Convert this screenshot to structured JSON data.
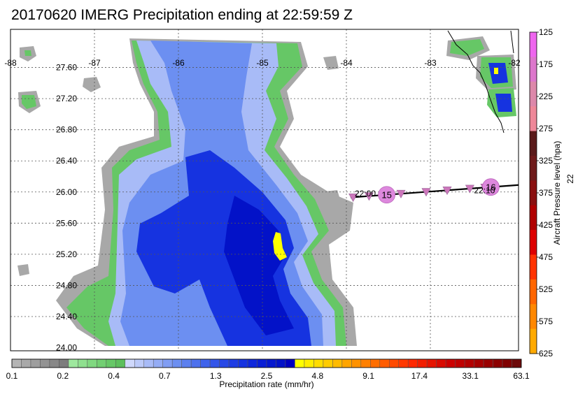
{
  "chart_data": {
    "type": "heatmap",
    "title": "20170620 IMERG Precipitation ending at 22:59:59 Z",
    "x_ticks": [
      -88,
      -87,
      -86,
      -85,
      -84,
      -83,
      -82
    ],
    "y_ticks": [
      "27.60",
      "27.20",
      "26.80",
      "26.40",
      "26.00",
      "25.60",
      "25.20",
      "24.80",
      "24.40",
      "24.00"
    ],
    "x_range": [
      -88,
      -81.95
    ],
    "y_range": [
      23.96,
      28.09
    ],
    "grid": true,
    "colorbar": {
      "label": "Precipitation rate (mm/hr)",
      "tick_labels": [
        "0.1",
        "0.2",
        "0.4",
        "0.7",
        "1.3",
        "2.5",
        "4.8",
        "9.1",
        "17.4",
        "33.1",
        "63.1"
      ],
      "colors": [
        "#b5b5b5",
        "#a9a9a9",
        "#9e9e9e",
        "#939393",
        "#888888",
        "#7d7d7d",
        "#9ee89e",
        "#8fe08f",
        "#80d880",
        "#72cf72",
        "#66c766",
        "#5cbf5c",
        "#cfd8fb",
        "#bccaf9",
        "#a8bbf7",
        "#94acf5",
        "#809df3",
        "#6c8ff1",
        "#5c80ef",
        "#4d71ed",
        "#3f63eb",
        "#3355e9",
        "#2848e6",
        "#1e3ce3",
        "#1633e0",
        "#0f28dc",
        "#0a1fd6",
        "#0618cf",
        "#0312c8",
        "#0000c0",
        "#ffff00",
        "#ffee00",
        "#ffdd00",
        "#ffcc00",
        "#ffbb00",
        "#ffa500",
        "#ff9200",
        "#ff8000",
        "#ff6e00",
        "#ff5c00",
        "#ff4a00",
        "#ff3800",
        "#ff2800",
        "#f21e00",
        "#e61400",
        "#d90a00",
        "#cc0000",
        "#bf0000",
        "#b30000",
        "#a60000",
        "#990000",
        "#8c0000",
        "#800000",
        "#6e0a0a"
      ]
    },
    "pressure_bar": {
      "label": "Aircraft Pressure level (hpa)",
      "ticks": [
        "125",
        "175",
        "225",
        "275",
        "325",
        "375",
        "425",
        "475",
        "525",
        "575",
        "625"
      ],
      "colors": [
        "#ee66ee",
        "#dd77cc",
        "#dd88aa",
        "#ee8899",
        "#5a1a1a",
        "#6e1a1a",
        "#8a1010",
        "#b00000",
        "#dd0000",
        "#ff3300",
        "#ff6600",
        "#ff8800",
        "#ffaa00"
      ],
      "side_label": "22"
    },
    "flight_track": {
      "times": [
        {
          "label": "22:00",
          "lon": -83.95,
          "lat": 25.98
        },
        {
          "label": "22:10",
          "lon": -82.53,
          "lat": 26.02
        }
      ],
      "markers": [
        -83.92,
        -83.73,
        -83.35,
        -83.05,
        -82.8,
        -82.53,
        -82.35
      ],
      "circles": [
        {
          "label": "15",
          "lon": -83.52,
          "lat": 25.95
        },
        {
          "label": "16",
          "lon": -82.28,
          "lat": 26.02
        }
      ],
      "start": {
        "lon": -83.95,
        "lat": 25.93
      },
      "end": {
        "lon": -81.95,
        "lat": 26.09
      }
    }
  }
}
